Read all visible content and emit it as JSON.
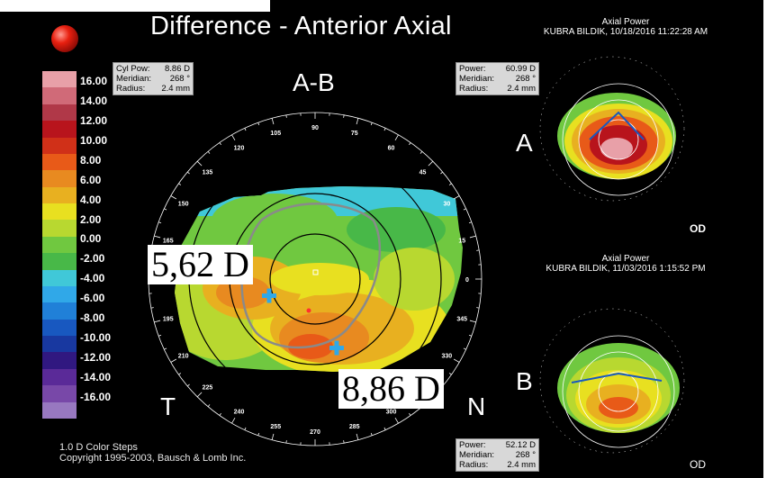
{
  "title": "Difference - Anterior Axial",
  "top_panel": {
    "title": "Axial Power",
    "patient": "KUBRA BILDIK, 10/18/2016 11:22:28 AM",
    "power_label": "Power:",
    "power_value": "60.99 D",
    "meridian_label": "Meridian:",
    "meridian_value": "268 °",
    "radius_label": "Radius:",
    "radius_value": "2.4 mm",
    "letter": "A",
    "eye": "OD"
  },
  "bottom_panel": {
    "title": "Axial Power",
    "patient": "KUBRA BILDIK, 11/03/2016 1:15:52 PM",
    "power_label": "Power:",
    "power_value": "52.12 D",
    "meridian_label": "Meridian:",
    "meridian_value": "268 °",
    "radius_label": "Radius:",
    "radius_value": "2.4 mm",
    "letter": "B",
    "eye": "OD"
  },
  "diff_box": {
    "cyl_label": "Cyl Pow:",
    "cyl_value": "8.86 D",
    "meridian_label": "Meridian:",
    "meridian_value": "268 °",
    "radius_label": "Radius:",
    "radius_value": "2.4 mm"
  },
  "main_map": {
    "label_top": "A-B",
    "label_temporal": "T",
    "label_nasal": "N",
    "annotation_left": "5,62 D",
    "annotation_right": "8,86 D",
    "degrees": [
      "90",
      "75",
      "60",
      "45",
      "30",
      "15",
      "0",
      "345",
      "330",
      "315",
      "300",
      "285",
      "270",
      "255",
      "240",
      "225",
      "210",
      "195",
      "180",
      "165",
      "150",
      "135",
      "120",
      "105"
    ]
  },
  "legend": {
    "colors": [
      "#e8a0a8",
      "#d06a78",
      "#b03848",
      "#b8141c",
      "#d03018",
      "#e85a18",
      "#e88a20",
      "#e8b020",
      "#e8e020",
      "#b8d830",
      "#70c840",
      "#48b848",
      "#40c8d8",
      "#30a8e8",
      "#2080d8",
      "#1858c0",
      "#1838a0",
      "#301880",
      "#5a2a98",
      "#7848a8",
      "#9878c0"
    ],
    "labels": [
      "16.00",
      "14.00",
      "12.00",
      "10.00",
      "8.00",
      "6.00",
      "4.00",
      "2.00",
      "0.00",
      "-2.00",
      "-4.00",
      "-6.00",
      "-8.00",
      "-10.00",
      "-12.00",
      "-14.00",
      "-16.00"
    ]
  },
  "footer": {
    "line1": "1.0 D Color Steps",
    "line2": "Copyright 1995-2003, Bausch & Lomb Inc."
  }
}
